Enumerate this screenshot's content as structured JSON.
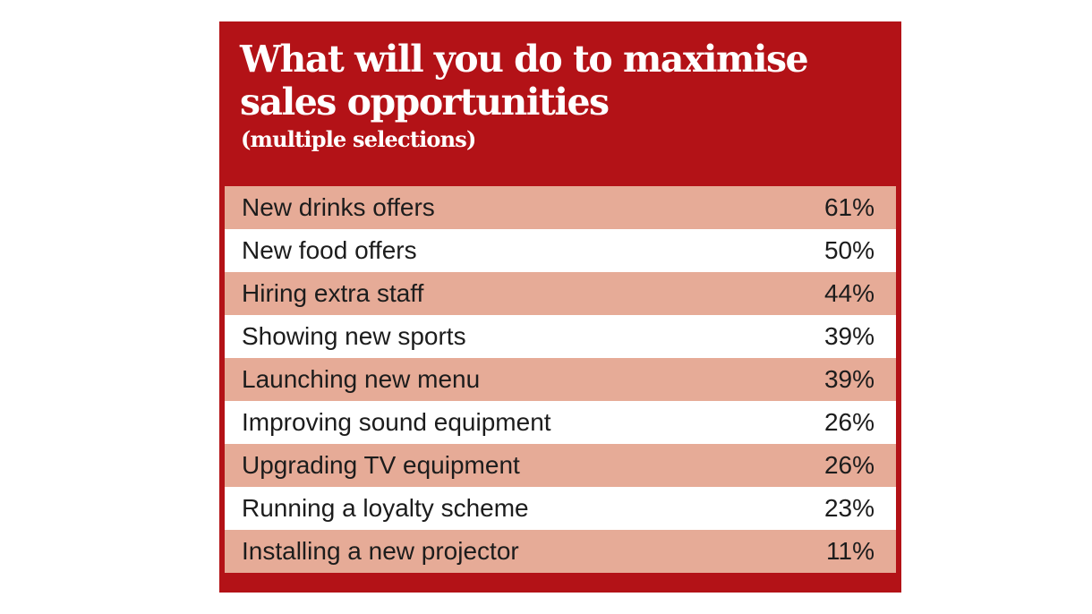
{
  "chart_data": {
    "type": "table",
    "title_line1": "What will you do to maximise",
    "title_line2": "sales opportunities",
    "subtitle": "(multiple selections)",
    "categories": [
      "New drinks offers",
      "New food offers",
      "Hiring extra staff",
      "Showing new sports",
      "Launching new menu",
      "Improving sound equipment",
      "Upgrading TV equipment",
      "Running a loyalty scheme",
      "Installing a new projector"
    ],
    "values": [
      61,
      50,
      44,
      39,
      39,
      26,
      26,
      23,
      11
    ],
    "value_labels": [
      "61%",
      "50%",
      "44%",
      "39%",
      "39%",
      "26%",
      "26%",
      "23%",
      "11%"
    ],
    "unit": "%"
  },
  "colors": {
    "header_red": "#b31217",
    "row_shade": "#e6ab97",
    "row_plain": "#ffffff",
    "text_dark": "#1c1c1c",
    "title_text": "#ffffff"
  }
}
